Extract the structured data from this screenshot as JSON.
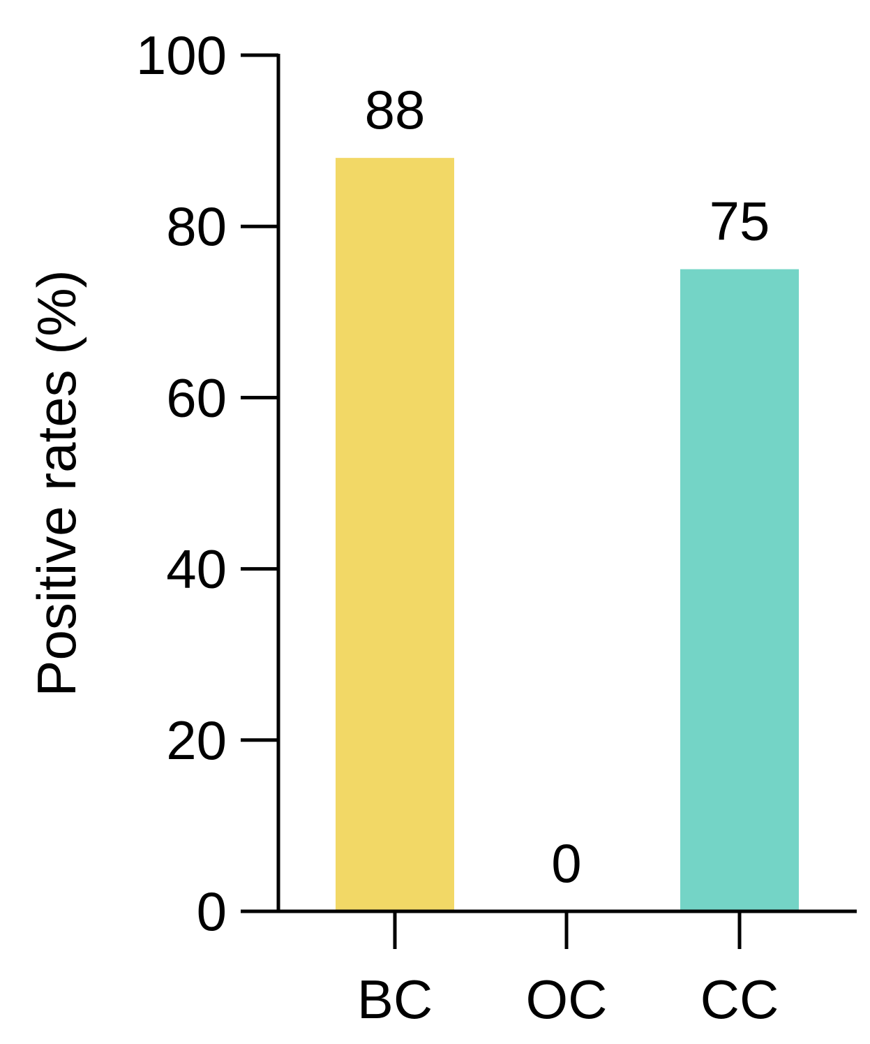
{
  "chart_data": {
    "type": "bar",
    "title": "",
    "xlabel": "",
    "ylabel": "Positive rates (%)",
    "categories": [
      "BC",
      "OC",
      "CC"
    ],
    "values": [
      88,
      0,
      75
    ],
    "data_labels": [
      "88",
      "0",
      "75"
    ],
    "colors": [
      "#F2D866",
      "#F2D866",
      "#74D4C6"
    ],
    "ylim": [
      0,
      100
    ],
    "yticks": [
      0,
      20,
      40,
      60,
      80,
      100
    ],
    "ytick_labels": [
      "0",
      "20",
      "40",
      "60",
      "80",
      "100"
    ],
    "grid": false,
    "legend": "none"
  }
}
